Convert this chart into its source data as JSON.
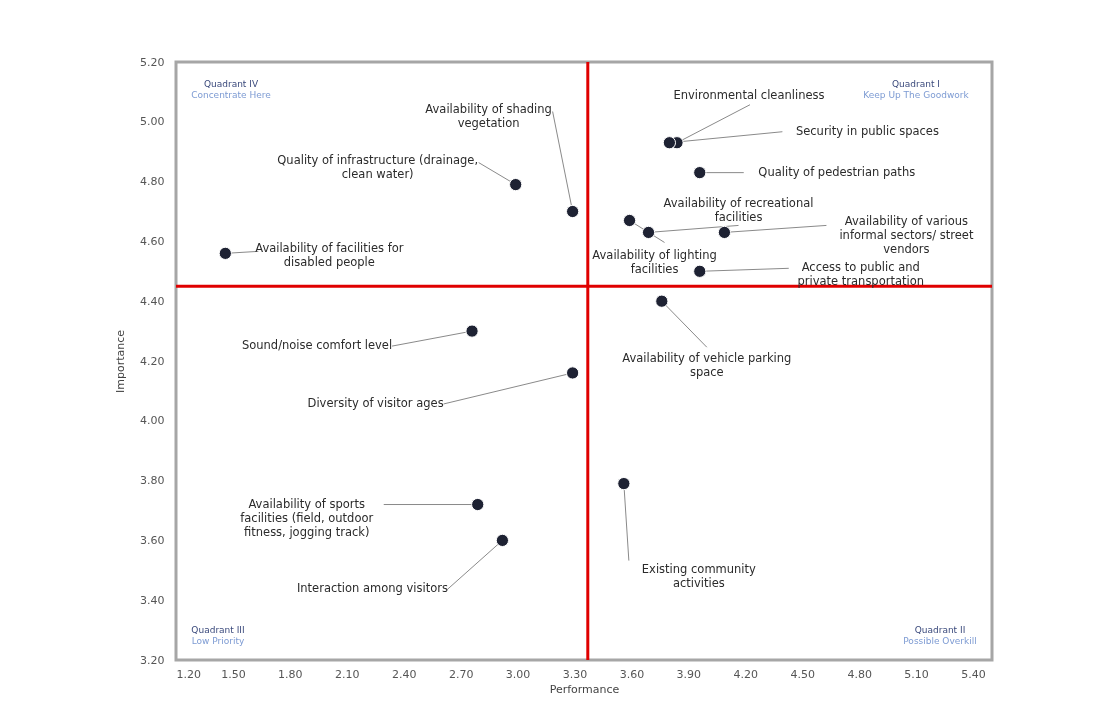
{
  "chart_data": {
    "type": "scatter",
    "xlabel": "Performance",
    "ylabel": "Importance",
    "marker": "circle",
    "x": [
      1.46,
      2.99,
      3.29,
      3.84,
      3.8,
      3.96,
      3.69,
      3.59,
      4.09,
      3.96,
      3.76,
      2.76,
      3.29,
      2.79,
      2.92,
      3.56
    ],
    "series": [
      {
        "color": "#1e2233",
        "values": [
          4.56,
          4.79,
          4.7,
          4.93,
          4.93,
          4.83,
          4.63,
          4.67,
          4.63,
          4.5,
          4.4,
          4.3,
          4.16,
          3.72,
          3.6,
          3.79
        ]
      }
    ],
    "xlim": [
      1.2,
      5.5
    ],
    "xticks": [
      {
        "value": 1.2,
        "label": "1.20"
      },
      {
        "value": 1.5,
        "label": "1.50"
      },
      {
        "value": 1.8,
        "label": "1.80"
      },
      {
        "value": 2.1,
        "label": "2.10"
      },
      {
        "value": 2.4,
        "label": "2.40"
      },
      {
        "value": 2.7,
        "label": "2.70"
      },
      {
        "value": 3.0,
        "label": "3.00"
      },
      {
        "value": 3.3,
        "label": "3.30"
      },
      {
        "value": 3.6,
        "label": "3.60"
      },
      {
        "value": 3.9,
        "label": "3.90"
      },
      {
        "value": 4.2,
        "label": "4.20"
      },
      {
        "value": 4.5,
        "label": "4.50"
      },
      {
        "value": 4.8,
        "label": "4.80"
      },
      {
        "value": 5.1,
        "label": "5.10"
      },
      {
        "value": 5.4,
        "label": "5.40"
      }
    ],
    "ylim": [
      3.2,
      5.2
    ],
    "yticks": [
      {
        "value": 3.2,
        "label": "3.20"
      },
      {
        "value": 3.4,
        "label": "3.40"
      },
      {
        "value": 3.6,
        "label": "3.60"
      },
      {
        "value": 3.8,
        "label": "3.80"
      },
      {
        "value": 4.0,
        "label": "4.00"
      },
      {
        "value": 4.2,
        "label": "4.20"
      },
      {
        "value": 4.4,
        "label": "4.40"
      },
      {
        "value": 4.6,
        "label": "4.60"
      },
      {
        "value": 4.8,
        "label": "4.80"
      },
      {
        "value": 5.0,
        "label": "5.00"
      },
      {
        "value": 5.2,
        "label": "5.20"
      }
    ],
    "ref_lines": [
      {
        "axis": "x",
        "value": 3.37,
        "color": "#e00000"
      },
      {
        "axis": "y",
        "value": 4.45,
        "color": "#e00000"
      }
    ],
    "annotations": [
      {
        "text": "Availability of facilities for disabled people",
        "x": 1.46,
        "y": 4.56
      },
      {
        "text": "Quality of infrastructure (drainage, clean water)",
        "x": 2.99,
        "y": 4.79
      },
      {
        "text": "Availability of shading vegetation",
        "x": 3.29,
        "y": 4.7
      },
      {
        "text": "Environmental cleanliness",
        "x": 3.84,
        "y": 4.93
      },
      {
        "text": "Security in public spaces",
        "x": 3.8,
        "y": 4.93
      },
      {
        "text": "Quality of pedestrian paths",
        "x": 3.96,
        "y": 4.83
      },
      {
        "text": "Availability of recreational facilities",
        "x": 3.69,
        "y": 4.63
      },
      {
        "text": "Availability of lighting facilities",
        "x": 3.59,
        "y": 4.67
      },
      {
        "text": "Availability of various informal sectors/ street vendors",
        "x": 4.09,
        "y": 4.63
      },
      {
        "text": "Access to public and private transportation",
        "x": 3.96,
        "y": 4.5
      },
      {
        "text": "Availability of vehicle parking space",
        "x": 3.76,
        "y": 4.4
      },
      {
        "text": "Sound/noise comfort level",
        "x": 2.76,
        "y": 4.3
      },
      {
        "text": "Diversity of visitor ages",
        "x": 3.29,
        "y": 4.16
      },
      {
        "text": "Availability of sports facilities (field, outdoor fitness, jogging track)",
        "x": 2.79,
        "y": 3.72
      },
      {
        "text": "Interaction among visitors",
        "x": 2.92,
        "y": 3.6
      },
      {
        "text": "Existing community activities",
        "x": 3.56,
        "y": 3.79
      },
      "Quadrant IV",
      "Concentrate Here",
      "Quadrant I",
      "Keep Up The Goodwork",
      "Quadrant III",
      "Low Priority",
      "Quadrant II",
      "Possible Overkill"
    ]
  }
}
